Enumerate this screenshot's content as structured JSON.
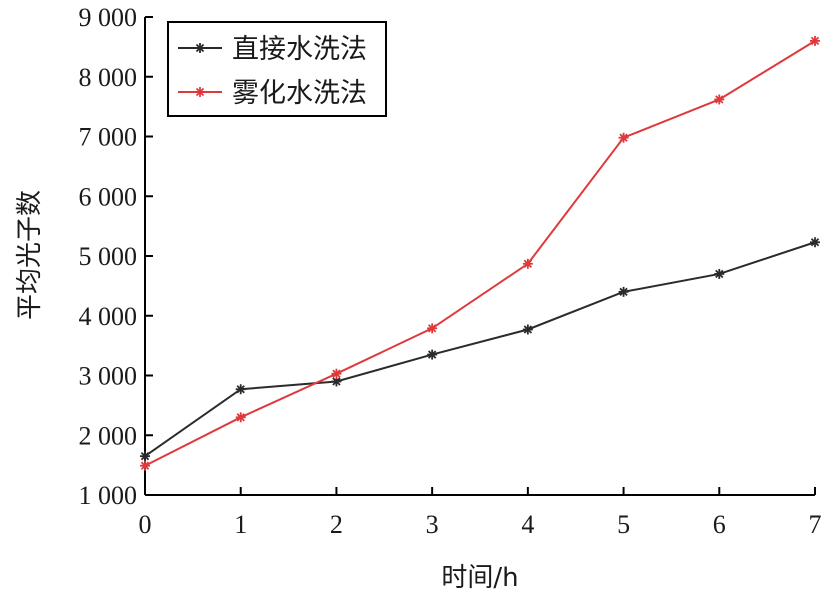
{
  "chart_data": {
    "type": "line",
    "x": [
      0,
      1,
      2,
      3,
      4,
      5,
      6,
      7
    ],
    "series": [
      {
        "name": "直接水洗法",
        "color": "#2b2b2b",
        "values": [
          1650,
          2770,
          2900,
          3350,
          3770,
          4400,
          4700,
          5230
        ]
      },
      {
        "name": "雾化水洗法",
        "color": "#e0393b",
        "values": [
          1490,
          2300,
          3030,
          3790,
          4870,
          6980,
          7620,
          8600
        ]
      }
    ],
    "xlabel": "时间/h",
    "ylabel": "平均光子数",
    "xlim": [
      0,
      7
    ],
    "ylim": [
      1000,
      9000
    ],
    "x_ticks": [
      "0",
      "1",
      "2",
      "3",
      "4",
      "5",
      "6",
      "7"
    ],
    "y_ticks": [
      "1 000",
      "2 000",
      "3 000",
      "4 000",
      "5 000",
      "6 000",
      "7 000",
      "8 000",
      "9 000"
    ],
    "legend_position": "top-left",
    "grid": false,
    "marker": "asterisk"
  }
}
